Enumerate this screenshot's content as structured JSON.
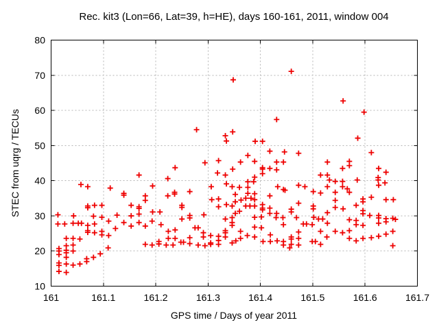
{
  "chart_data": {
    "type": "scatter",
    "title": "Rec. kit3 (Lon=66, Lat=39, h=HE), days 160-161, 2011, window 004",
    "xlabel": "GPS time / Days of year 2011",
    "ylabel": "STEC from uqrg / TECUs",
    "xlim": [
      161,
      161.7
    ],
    "ylim": [
      10,
      80
    ],
    "xtick_values": [
      161,
      161.1,
      161.2,
      161.3,
      161.4,
      161.5,
      161.6,
      161.7
    ],
    "xtick_labels": [
      "161",
      "161.1",
      "161.2",
      "161.3",
      "161.4",
      "161.5",
      "161.6",
      "161.7"
    ],
    "ytick_values": [
      10,
      20,
      30,
      40,
      50,
      60,
      70,
      80
    ],
    "ytick_labels": [
      "10",
      "20",
      "30",
      "40",
      "50",
      "60",
      "70",
      "80"
    ],
    "grid": true,
    "legend": "none",
    "marker": "plus",
    "marker_color": "#ee0000",
    "grid_color": "#b4b4b4",
    "axis_color": "#000000",
    "points": [
      [
        161.278,
        54.5
      ],
      [
        161.333,
        52.8
      ],
      [
        161.335,
        51.3
      ],
      [
        161.347,
        53.9
      ],
      [
        161.348,
        68.7
      ],
      [
        161.459,
        71.1
      ],
      [
        161.558,
        62.7
      ],
      [
        161.598,
        59.5
      ],
      [
        161.431,
        57.4
      ],
      [
        161.39,
        51.2
      ],
      [
        161.404,
        51.2
      ],
      [
        161.586,
        52.1
      ],
      [
        161.168,
        41.6
      ],
      [
        161.057,
        38.9
      ],
      [
        161.07,
        38.3
      ],
      [
        161.113,
        37.9
      ],
      [
        161.139,
        36.4
      ],
      [
        161.139,
        35.9
      ],
      [
        161.07,
        32.8
      ],
      [
        161.07,
        32.3
      ],
      [
        161.083,
        33.0
      ],
      [
        161.097,
        33.0
      ],
      [
        161.153,
        33.0
      ],
      [
        161.168,
        32.6
      ],
      [
        161.168,
        32.1
      ],
      [
        161.013,
        30.3
      ],
      [
        161.043,
        30.0
      ],
      [
        161.081,
        29.9
      ],
      [
        161.126,
        30.2
      ],
      [
        161.153,
        30.0
      ],
      [
        161.168,
        30.5
      ],
      [
        161.294,
        45.1
      ],
      [
        161.32,
        45.7
      ],
      [
        161.237,
        43.7
      ],
      [
        161.347,
        43.3
      ],
      [
        161.318,
        42.2
      ],
      [
        161.333,
        41.6
      ],
      [
        161.223,
        40.6
      ],
      [
        161.335,
        39.1
      ],
      [
        161.194,
        38.5
      ],
      [
        161.306,
        38.3
      ],
      [
        161.346,
        38.3
      ],
      [
        161.236,
        36.7
      ],
      [
        161.236,
        36.2
      ],
      [
        161.18,
        35.7
      ],
      [
        161.18,
        34.4
      ],
      [
        161.223,
        35.7
      ],
      [
        161.265,
        36.9
      ],
      [
        161.307,
        34.6
      ],
      [
        161.32,
        34.8
      ],
      [
        161.335,
        33.2
      ],
      [
        161.32,
        32.6
      ],
      [
        161.346,
        32.8
      ],
      [
        161.25,
        33.0
      ],
      [
        161.25,
        32.4
      ],
      [
        161.194,
        31.1
      ],
      [
        161.208,
        31.1
      ],
      [
        161.265,
        30.1
      ],
      [
        161.292,
        30.3
      ],
      [
        161.376,
        47.2
      ],
      [
        161.418,
        48.4
      ],
      [
        161.446,
        48.2
      ],
      [
        161.473,
        47.8
      ],
      [
        161.362,
        45.3
      ],
      [
        161.389,
        45.5
      ],
      [
        161.431,
        45.3
      ],
      [
        161.444,
        45.3
      ],
      [
        161.404,
        43.7
      ],
      [
        161.404,
        43.3
      ],
      [
        161.418,
        43.5
      ],
      [
        161.431,
        43.1
      ],
      [
        161.404,
        42.0
      ],
      [
        161.389,
        41.0
      ],
      [
        161.515,
        41.6
      ],
      [
        161.36,
        38.1
      ],
      [
        161.376,
        39.7
      ],
      [
        161.376,
        38.1
      ],
      [
        161.387,
        39.7
      ],
      [
        161.433,
        38.3
      ],
      [
        161.444,
        37.5
      ],
      [
        161.447,
        37.3
      ],
      [
        161.473,
        38.7
      ],
      [
        161.485,
        38.3
      ],
      [
        161.501,
        36.9
      ],
      [
        161.515,
        36.5
      ],
      [
        161.352,
        36.1
      ],
      [
        161.376,
        36.4
      ],
      [
        161.389,
        36.3
      ],
      [
        161.418,
        35.7
      ],
      [
        161.372,
        35.0
      ],
      [
        161.382,
        35.0
      ],
      [
        161.389,
        34.6
      ],
      [
        161.352,
        34.0
      ],
      [
        161.363,
        34.5
      ],
      [
        161.372,
        32.8
      ],
      [
        161.38,
        32.8
      ],
      [
        161.389,
        32.8
      ],
      [
        161.404,
        33.2
      ],
      [
        161.404,
        32.2
      ],
      [
        161.404,
        31.7
      ],
      [
        161.418,
        32.2
      ],
      [
        161.473,
        33.6
      ],
      [
        161.501,
        32.8
      ],
      [
        161.501,
        32.0
      ],
      [
        161.36,
        31.3
      ],
      [
        161.352,
        30.7
      ],
      [
        161.418,
        30.7
      ],
      [
        161.431,
        30.7
      ],
      [
        161.459,
        31.1
      ],
      [
        161.459,
        31.9
      ],
      [
        161.612,
        48.0
      ],
      [
        161.528,
        45.3
      ],
      [
        161.57,
        45.5
      ],
      [
        161.57,
        44.3
      ],
      [
        161.557,
        43.5
      ],
      [
        161.626,
        43.5
      ],
      [
        161.64,
        42.4
      ],
      [
        161.528,
        41.6
      ],
      [
        161.543,
        39.8
      ],
      [
        161.532,
        40.2
      ],
      [
        161.557,
        39.8
      ],
      [
        161.585,
        40.2
      ],
      [
        161.625,
        40.9
      ],
      [
        161.625,
        40.2
      ],
      [
        161.638,
        39.4
      ],
      [
        161.528,
        38.3
      ],
      [
        161.557,
        38.3
      ],
      [
        161.566,
        37.7
      ],
      [
        161.543,
        36.7
      ],
      [
        161.57,
        36.7
      ],
      [
        161.626,
        38.7
      ],
      [
        161.612,
        35.3
      ],
      [
        161.543,
        34.4
      ],
      [
        161.596,
        34.8
      ],
      [
        161.596,
        34.0
      ],
      [
        161.583,
        33.0
      ],
      [
        161.64,
        34.6
      ],
      [
        161.654,
        34.6
      ],
      [
        161.543,
        32.4
      ],
      [
        161.558,
        32.0
      ],
      [
        161.596,
        31.5
      ],
      [
        161.596,
        30.6
      ],
      [
        161.528,
        30.9
      ],
      [
        161.609,
        30.1
      ],
      [
        161.013,
        27.7
      ],
      [
        161.026,
        27.7
      ],
      [
        161.042,
        27.9
      ],
      [
        161.052,
        27.9
      ],
      [
        161.058,
        27.9
      ],
      [
        161.07,
        27.3
      ],
      [
        161.083,
        27.7
      ],
      [
        161.097,
        29.6
      ],
      [
        161.11,
        28.5
      ],
      [
        161.139,
        28.1
      ],
      [
        161.153,
        27.1
      ],
      [
        161.168,
        28.1
      ],
      [
        161.07,
        25.8
      ],
      [
        161.07,
        25.3
      ],
      [
        161.083,
        25.2
      ],
      [
        161.097,
        25.6
      ],
      [
        161.123,
        26.4
      ],
      [
        161.097,
        24.6
      ],
      [
        161.11,
        24.4
      ],
      [
        161.029,
        23.6
      ],
      [
        161.042,
        23.6
      ],
      [
        161.055,
        23.4
      ],
      [
        161.029,
        21.5
      ],
      [
        161.042,
        21.7
      ],
      [
        161.015,
        20.7
      ],
      [
        161.015,
        20.0
      ],
      [
        161.029,
        20.2
      ],
      [
        161.029,
        19.5
      ],
      [
        161.042,
        20.0
      ],
      [
        161.015,
        19.0
      ],
      [
        161.029,
        18.2
      ],
      [
        161.015,
        16.6
      ],
      [
        161.015,
        15.9
      ],
      [
        161.029,
        16.3
      ],
      [
        161.042,
        16.0
      ],
      [
        161.055,
        16.3
      ],
      [
        161.068,
        17.8
      ],
      [
        161.068,
        17.0
      ],
      [
        161.081,
        18.2
      ],
      [
        161.094,
        19.2
      ],
      [
        161.109,
        20.9
      ],
      [
        161.015,
        14.2
      ],
      [
        161.029,
        13.9
      ],
      [
        161.193,
        28.5
      ],
      [
        161.21,
        27.5
      ],
      [
        161.18,
        27.1
      ],
      [
        161.25,
        29.1
      ],
      [
        161.265,
        29.4
      ],
      [
        161.224,
        25.6
      ],
      [
        161.237,
        26.0
      ],
      [
        161.224,
        23.6
      ],
      [
        161.237,
        23.6
      ],
      [
        161.275,
        26.6
      ],
      [
        161.281,
        26.6
      ],
      [
        161.291,
        25.2
      ],
      [
        161.291,
        24.0
      ],
      [
        161.265,
        23.8
      ],
      [
        161.18,
        21.9
      ],
      [
        161.193,
        21.7
      ],
      [
        161.206,
        22.7
      ],
      [
        161.206,
        22.0
      ],
      [
        161.22,
        21.7
      ],
      [
        161.233,
        21.7
      ],
      [
        161.248,
        22.5
      ],
      [
        161.253,
        22.5
      ],
      [
        161.265,
        22.1
      ],
      [
        161.281,
        21.7
      ],
      [
        161.294,
        21.5
      ],
      [
        161.305,
        24.4
      ],
      [
        161.305,
        22.3
      ],
      [
        161.305,
        21.9
      ],
      [
        161.32,
        24.2
      ],
      [
        161.32,
        23.0
      ],
      [
        161.32,
        21.9
      ],
      [
        161.333,
        29.1
      ],
      [
        161.346,
        29.5
      ],
      [
        161.346,
        28.1
      ],
      [
        161.346,
        27.3
      ],
      [
        161.333,
        25.8
      ],
      [
        161.333,
        25.2
      ],
      [
        161.333,
        24.0
      ],
      [
        161.346,
        22.3
      ],
      [
        161.389,
        29.6
      ],
      [
        161.402,
        29.7
      ],
      [
        161.43,
        29.5
      ],
      [
        161.443,
        29.5
      ],
      [
        161.469,
        29.5
      ],
      [
        161.502,
        29.6
      ],
      [
        161.511,
        29.1
      ],
      [
        161.519,
        29.1
      ],
      [
        161.444,
        27.5
      ],
      [
        161.482,
        27.7
      ],
      [
        161.488,
        27.7
      ],
      [
        161.499,
        27.5
      ],
      [
        161.389,
        26.8
      ],
      [
        161.402,
        26.6
      ],
      [
        161.362,
        25.6
      ],
      [
        161.375,
        24.4
      ],
      [
        161.389,
        24.0
      ],
      [
        161.362,
        23.6
      ],
      [
        161.353,
        22.9
      ],
      [
        161.419,
        24.6
      ],
      [
        161.405,
        22.7
      ],
      [
        161.419,
        22.7
      ],
      [
        161.432,
        22.9
      ],
      [
        161.444,
        22.7
      ],
      [
        161.444,
        21.7
      ],
      [
        161.459,
        24.0
      ],
      [
        161.459,
        23.4
      ],
      [
        161.459,
        21.9
      ],
      [
        161.456,
        20.9
      ],
      [
        161.473,
        25.4
      ],
      [
        161.473,
        23.6
      ],
      [
        161.473,
        21.7
      ],
      [
        161.499,
        22.7
      ],
      [
        161.505,
        22.7
      ],
      [
        161.515,
        25.6
      ],
      [
        161.527,
        24.0
      ],
      [
        161.515,
        21.9
      ],
      [
        161.57,
        28.9
      ],
      [
        161.583,
        28.7
      ],
      [
        161.583,
        27.5
      ],
      [
        161.596,
        27.3
      ],
      [
        161.626,
        30.1
      ],
      [
        161.626,
        29.4
      ],
      [
        161.626,
        27.9
      ],
      [
        161.64,
        29.2
      ],
      [
        161.64,
        28.3
      ],
      [
        161.653,
        29.3
      ],
      [
        161.658,
        29.0
      ],
      [
        161.543,
        25.6
      ],
      [
        161.557,
        25.2
      ],
      [
        161.57,
        25.8
      ],
      [
        161.528,
        27.9
      ],
      [
        161.57,
        23.6
      ],
      [
        161.583,
        22.9
      ],
      [
        161.596,
        23.6
      ],
      [
        161.612,
        23.8
      ],
      [
        161.626,
        24.2
      ],
      [
        161.64,
        24.8
      ],
      [
        161.653,
        25.6
      ],
      [
        161.653,
        21.5
      ]
    ]
  }
}
